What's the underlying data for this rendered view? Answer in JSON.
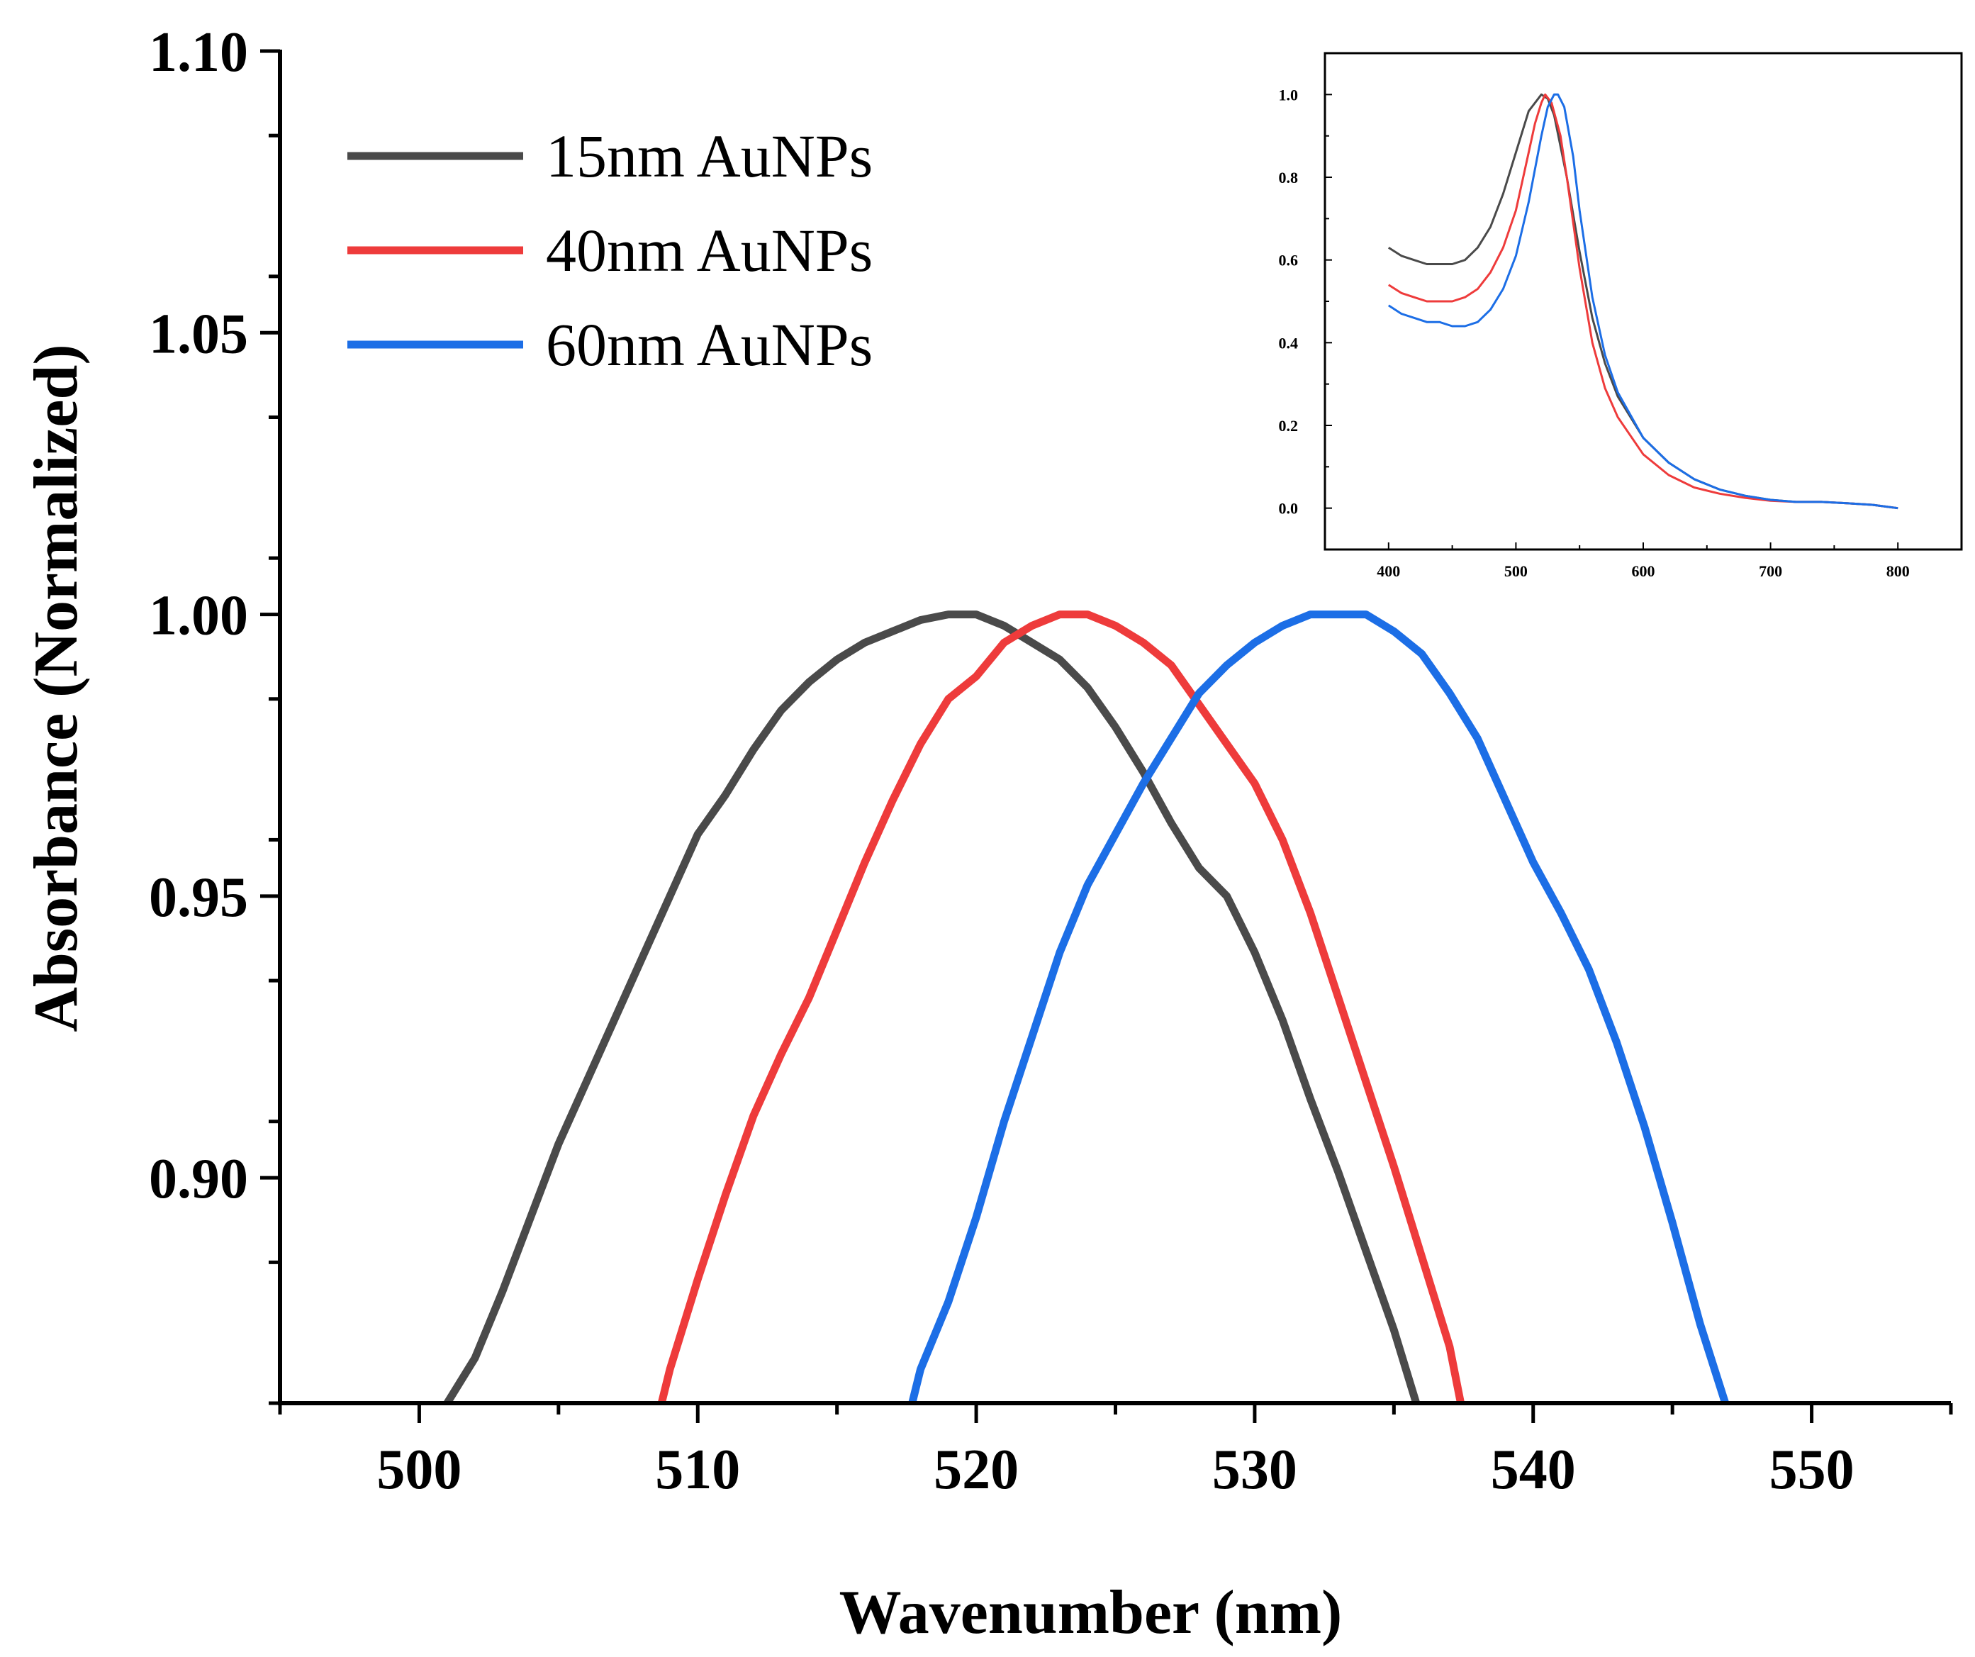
{
  "chart_data": [
    {
      "type": "line",
      "xlabel": "Wavenumber (nm)",
      "ylabel": "Absorbance (Normalized)",
      "xlim": [
        495,
        555
      ],
      "ylim": [
        0.86,
        1.1
      ],
      "xticks": [
        500,
        510,
        520,
        530,
        540,
        550
      ],
      "xtick_labels": [
        "500",
        "510",
        "520",
        "530",
        "540",
        "550"
      ],
      "yticks": [
        0.9,
        0.95,
        1.0,
        1.05,
        1.1
      ],
      "ytick_labels": [
        "0.90",
        "0.95",
        "1.00",
        "1.05",
        "1.10"
      ],
      "legend_position": "top-left",
      "series": [
        {
          "name": "15nm AuNPs",
          "color": "#4a4a4a",
          "x": [
            501,
            502,
            503,
            504,
            505,
            506,
            507,
            508,
            509,
            510,
            511,
            512,
            513,
            514,
            515,
            516,
            517,
            518,
            519,
            520,
            521,
            522,
            523,
            524,
            525,
            526,
            527,
            528,
            529,
            530,
            531,
            532,
            533,
            534,
            535,
            535.8
          ],
          "y": [
            0.86,
            0.868,
            0.88,
            0.893,
            0.906,
            0.917,
            0.928,
            0.939,
            0.95,
            0.961,
            0.968,
            0.976,
            0.983,
            0.988,
            0.992,
            0.995,
            0.997,
            0.999,
            1.0,
            1.0,
            0.998,
            0.995,
            0.992,
            0.987,
            0.98,
            0.972,
            0.963,
            0.955,
            0.95,
            0.94,
            0.928,
            0.914,
            0.901,
            0.887,
            0.873,
            0.86
          ]
        },
        {
          "name": "40nm AuNPs",
          "color": "#ee3b3b",
          "x": [
            508.7,
            509,
            510,
            511,
            512,
            513,
            514,
            515,
            516,
            517,
            518,
            519,
            520,
            521,
            522,
            523,
            524,
            525,
            526,
            527,
            528,
            529,
            530,
            531,
            532,
            533,
            534,
            535,
            536,
            537,
            537.4
          ],
          "y": [
            0.86,
            0.866,
            0.882,
            0.897,
            0.911,
            0.922,
            0.932,
            0.944,
            0.956,
            0.967,
            0.977,
            0.985,
            0.989,
            0.995,
            0.998,
            1.0,
            1.0,
            0.998,
            0.995,
            0.991,
            0.984,
            0.977,
            0.97,
            0.96,
            0.947,
            0.932,
            0.917,
            0.902,
            0.886,
            0.87,
            0.86
          ]
        },
        {
          "name": "60nm AuNPs",
          "color": "#1c6ee6",
          "x": [
            517.7,
            518,
            519,
            520,
            521,
            522,
            523,
            524,
            525,
            526,
            527,
            528,
            529,
            530,
            531,
            532,
            533,
            534,
            535,
            536,
            537,
            538,
            539,
            540,
            541,
            542,
            543,
            544,
            545,
            546,
            546.9
          ],
          "y": [
            0.86,
            0.866,
            0.878,
            0.893,
            0.91,
            0.925,
            0.94,
            0.952,
            0.961,
            0.97,
            0.978,
            0.986,
            0.991,
            0.995,
            0.998,
            1.0,
            1.0,
            1.0,
            0.997,
            0.993,
            0.986,
            0.978,
            0.967,
            0.956,
            0.947,
            0.937,
            0.924,
            0.909,
            0.892,
            0.874,
            0.86
          ]
        }
      ]
    },
    {
      "type": "line",
      "role": "inset",
      "xlabel": "",
      "ylabel": "",
      "xlim": [
        350,
        850
      ],
      "ylim": [
        -0.1,
        1.1
      ],
      "xticks": [
        400,
        500,
        600,
        700,
        800
      ],
      "xtick_labels": [
        "400",
        "500",
        "600",
        "700",
        "800"
      ],
      "yticks": [
        0.0,
        0.2,
        0.4,
        0.6,
        0.8,
        1.0
      ],
      "ytick_labels": [
        "0.0",
        "0.2",
        "0.4",
        "0.6",
        "0.8",
        "1.0"
      ],
      "series": [
        {
          "name": "15nm AuNPs",
          "color": "#4a4a4a",
          "x": [
            400,
            410,
            420,
            430,
            440,
            450,
            460,
            470,
            480,
            490,
            500,
            510,
            520,
            525,
            530,
            540,
            550,
            560,
            570,
            580,
            600,
            620,
            640,
            660,
            680,
            700,
            720,
            740,
            760,
            780,
            800
          ],
          "y": [
            0.63,
            0.61,
            0.6,
            0.59,
            0.59,
            0.59,
            0.6,
            0.63,
            0.68,
            0.76,
            0.86,
            0.96,
            1.0,
            0.99,
            0.95,
            0.8,
            0.62,
            0.46,
            0.35,
            0.27,
            0.17,
            0.11,
            0.07,
            0.045,
            0.03,
            0.02,
            0.015,
            0.015,
            0.012,
            0.008,
            0.0
          ]
        },
        {
          "name": "40nm AuNPs",
          "color": "#ee3b3b",
          "x": [
            400,
            410,
            420,
            430,
            440,
            450,
            460,
            470,
            480,
            490,
            500,
            510,
            515,
            520,
            523,
            528,
            535,
            540,
            550,
            560,
            570,
            580,
            600,
            620,
            640,
            660,
            680,
            700,
            720,
            740,
            760,
            780,
            800
          ],
          "y": [
            0.54,
            0.52,
            0.51,
            0.5,
            0.5,
            0.5,
            0.51,
            0.53,
            0.57,
            0.63,
            0.72,
            0.86,
            0.93,
            0.98,
            1.0,
            0.98,
            0.9,
            0.8,
            0.58,
            0.4,
            0.29,
            0.22,
            0.13,
            0.08,
            0.05,
            0.035,
            0.025,
            0.018,
            0.015,
            0.015,
            0.012,
            0.008,
            0.0
          ]
        },
        {
          "name": "60nm AuNPs",
          "color": "#1c6ee6",
          "x": [
            400,
            410,
            420,
            430,
            440,
            450,
            460,
            470,
            480,
            490,
            500,
            510,
            520,
            525,
            530,
            533,
            538,
            545,
            550,
            560,
            570,
            580,
            600,
            620,
            640,
            660,
            680,
            700,
            720,
            740,
            760,
            780,
            800
          ],
          "y": [
            0.49,
            0.47,
            0.46,
            0.45,
            0.45,
            0.44,
            0.44,
            0.45,
            0.48,
            0.53,
            0.61,
            0.74,
            0.9,
            0.97,
            1.0,
            1.0,
            0.97,
            0.85,
            0.72,
            0.51,
            0.37,
            0.28,
            0.17,
            0.11,
            0.07,
            0.045,
            0.03,
            0.02,
            0.015,
            0.015,
            0.012,
            0.008,
            0.0
          ]
        }
      ]
    }
  ]
}
